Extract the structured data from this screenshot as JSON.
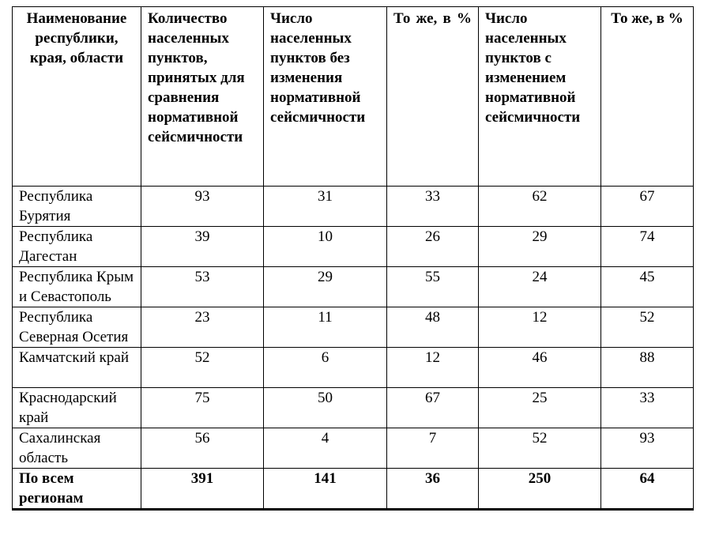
{
  "table": {
    "header": [
      "Наименование республики, края, области",
      "Количество населенных пунктов, принятых для сравнения нормативной сейсмичности",
      "Число населенных пунктов без изменения нормативной сейсмичности",
      "То же, в %",
      "Число населенных пунктов с изменением нормативной сейсмичности",
      "То же, в %"
    ],
    "rows": [
      [
        "Республика Бурятия",
        93,
        31,
        33,
        62,
        67
      ],
      [
        "Республика Дагестан",
        39,
        10,
        26,
        29,
        74
      ],
      [
        "Республика Крым и Севастополь",
        53,
        29,
        55,
        24,
        45
      ],
      [
        "Республика Северная Осетия",
        23,
        11,
        48,
        12,
        52
      ],
      [
        "Камчатский край",
        52,
        6,
        12,
        46,
        88
      ],
      [
        "Краснодарский край",
        75,
        50,
        67,
        25,
        33
      ],
      [
        "Сахалинская область",
        56,
        4,
        7,
        52,
        93
      ]
    ],
    "total": [
      "По всем регионам",
      391,
      141,
      36,
      250,
      64
    ]
  }
}
